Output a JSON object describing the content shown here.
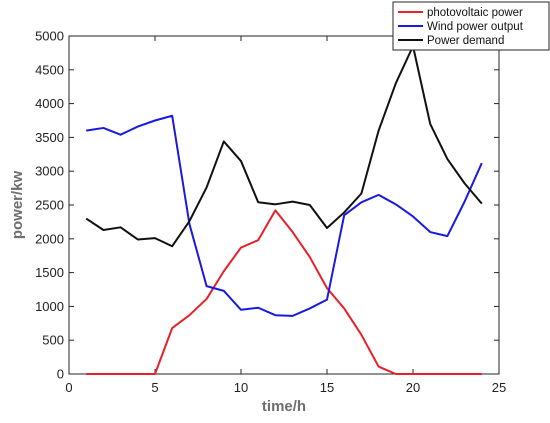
{
  "chart_data": {
    "type": "line",
    "title": "",
    "xlabel": "time/h",
    "ylabel": "power/kw",
    "xlim": [
      0,
      25
    ],
    "ylim": [
      0,
      5000
    ],
    "x_ticks": [
      0,
      5,
      10,
      15,
      20,
      25
    ],
    "y_ticks": [
      0,
      500,
      1000,
      1500,
      2000,
      2500,
      3000,
      3500,
      4000,
      4500,
      5000
    ],
    "grid": false,
    "legend_position": "top-right",
    "x": [
      1,
      2,
      3,
      4,
      5,
      6,
      7,
      8,
      9,
      10,
      11,
      12,
      13,
      14,
      15,
      16,
      17,
      18,
      19,
      20,
      21,
      22,
      23,
      24
    ],
    "series": [
      {
        "name": "photovoltaic power",
        "color": "#e8202a",
        "values": [
          0,
          0,
          0,
          0,
          0,
          680,
          870,
          1110,
          1520,
          1870,
          1980,
          2420,
          2100,
          1730,
          1270,
          970,
          580,
          110,
          0,
          0,
          0,
          0,
          0,
          0
        ]
      },
      {
        "name": "Wind power output",
        "color": "#1a1adf",
        "values": [
          3600,
          3640,
          3540,
          3660,
          3750,
          3820,
          2220,
          1300,
          1230,
          950,
          980,
          870,
          860,
          970,
          1100,
          2350,
          2540,
          2650,
          2510,
          2330,
          2100,
          2040,
          2550,
          3120
        ]
      },
      {
        "name": "Power demand",
        "color": "#111111",
        "values": [
          2300,
          2130,
          2170,
          1990,
          2010,
          1890,
          2260,
          2760,
          3440,
          3150,
          2540,
          2510,
          2550,
          2500,
          2160,
          2390,
          2670,
          3600,
          4300,
          4850,
          3700,
          3180,
          2820,
          2520
        ]
      }
    ]
  }
}
